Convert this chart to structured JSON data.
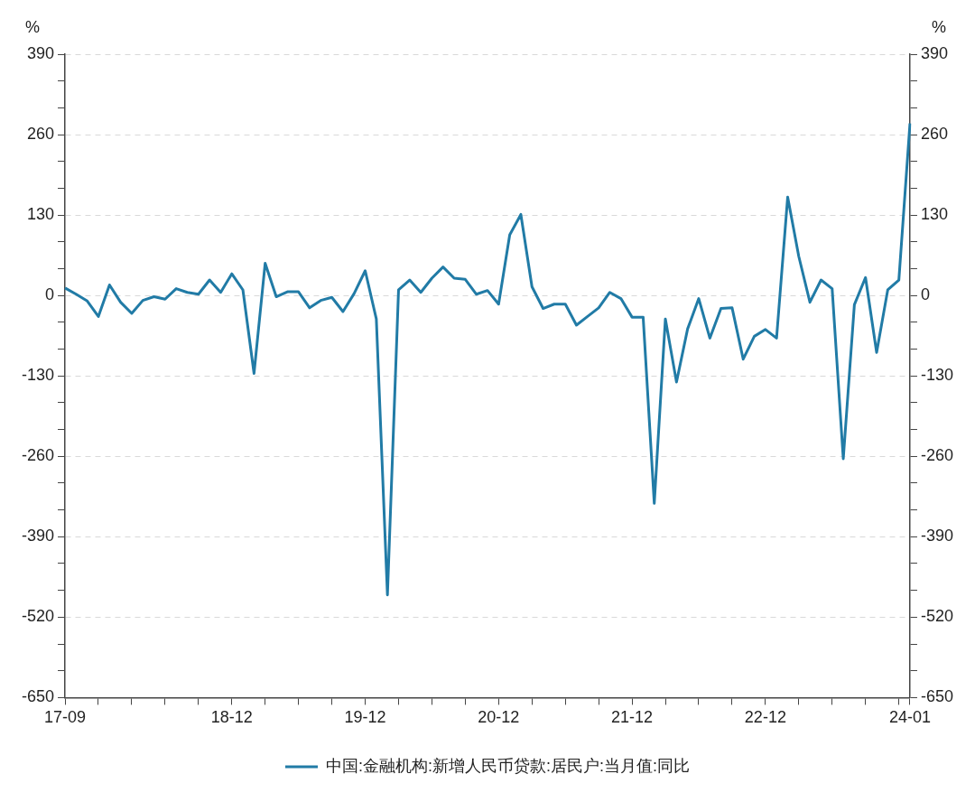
{
  "chart_data": {
    "type": "line",
    "ylabel": "%",
    "y2label": "%",
    "categories": [
      "17-09",
      null,
      null,
      null,
      null,
      null,
      null,
      null,
      null,
      null,
      null,
      null,
      null,
      null,
      null,
      "18-12",
      null,
      null,
      null,
      null,
      null,
      null,
      null,
      null,
      null,
      null,
      null,
      "19-12",
      null,
      null,
      null,
      null,
      null,
      null,
      null,
      null,
      null,
      null,
      null,
      "20-12",
      null,
      null,
      null,
      null,
      null,
      null,
      null,
      null,
      null,
      null,
      null,
      "21-12",
      null,
      null,
      null,
      null,
      null,
      null,
      null,
      null,
      null,
      null,
      null,
      "22-12",
      null,
      null,
      null,
      null,
      null,
      null,
      null,
      null,
      null,
      null,
      null,
      null,
      "24-01"
    ],
    "series": [
      {
        "name": "中国:金融机构:新增人民币贷款:居民户:当月值:同比",
        "color": "#217ba6",
        "values": [
          12,
          2,
          -9,
          -34,
          17,
          -11,
          -29,
          -8,
          -2,
          -6,
          11,
          5,
          2,
          25,
          5,
          35,
          9,
          -126,
          52,
          -2,
          6,
          6,
          -20,
          -8,
          -3,
          -26,
          3,
          40,
          -38,
          -484,
          9,
          25,
          5,
          28,
          46,
          28,
          26,
          2,
          8,
          -14,
          98,
          131,
          14,
          -21,
          -14,
          -14,
          -48,
          -34,
          -20,
          5,
          -5,
          -35,
          -35,
          -336,
          -38,
          -140,
          -54,
          -5,
          -69,
          -21,
          -20,
          -103,
          -66,
          -55,
          -69,
          159,
          63,
          -11,
          25,
          11,
          -264,
          -15,
          29,
          -92,
          9,
          25,
          278
        ]
      }
    ],
    "ylim": [
      -650,
      390
    ],
    "yticks": [
      -650,
      {
        "value": -606.7,
        "label": null
      },
      {
        "value": -563.3,
        "label": null
      },
      -520,
      {
        "value": -476.7,
        "label": null
      },
      {
        "value": -433.3,
        "label": null
      },
      -390,
      {
        "value": -346.7,
        "label": null
      },
      {
        "value": -303.3,
        "label": null
      },
      -260,
      {
        "value": -216.7,
        "label": null
      },
      {
        "value": -173.3,
        "label": null
      },
      -130,
      {
        "value": -86.7,
        "label": null
      },
      {
        "value": -43.3,
        "label": null
      },
      0,
      {
        "value": 43.3,
        "label": null
      },
      {
        "value": 86.7,
        "label": null
      },
      130,
      {
        "value": 173.3,
        "label": null
      },
      {
        "value": 216.7,
        "label": null
      },
      260,
      {
        "value": 303.3,
        "label": null
      },
      {
        "value": 346.7,
        "label": null
      },
      390
    ],
    "y2lim": [
      -650,
      390
    ],
    "y2ticks": [
      -650,
      {
        "value": -606.7,
        "label": null
      },
      {
        "value": -563.3,
        "label": null
      },
      -520,
      {
        "value": -476.7,
        "label": null
      },
      {
        "value": -433.3,
        "label": null
      },
      -390,
      {
        "value": -346.7,
        "label": null
      },
      {
        "value": -303.3,
        "label": null
      },
      -260,
      {
        "value": -216.7,
        "label": null
      },
      {
        "value": -173.3,
        "label": null
      },
      -130,
      {
        "value": -86.7,
        "label": null
      },
      {
        "value": -43.3,
        "label": null
      },
      0,
      {
        "value": 43.3,
        "label": null
      },
      {
        "value": 86.7,
        "label": null
      },
      130,
      {
        "value": 173.3,
        "label": null
      },
      {
        "value": 216.7,
        "label": null
      },
      260,
      {
        "value": 303.3,
        "label": null
      },
      {
        "value": 346.7,
        "label": null
      },
      390
    ],
    "grid": "y",
    "legend": "bottom",
    "marker": "none",
    "line_style": "solid"
  }
}
